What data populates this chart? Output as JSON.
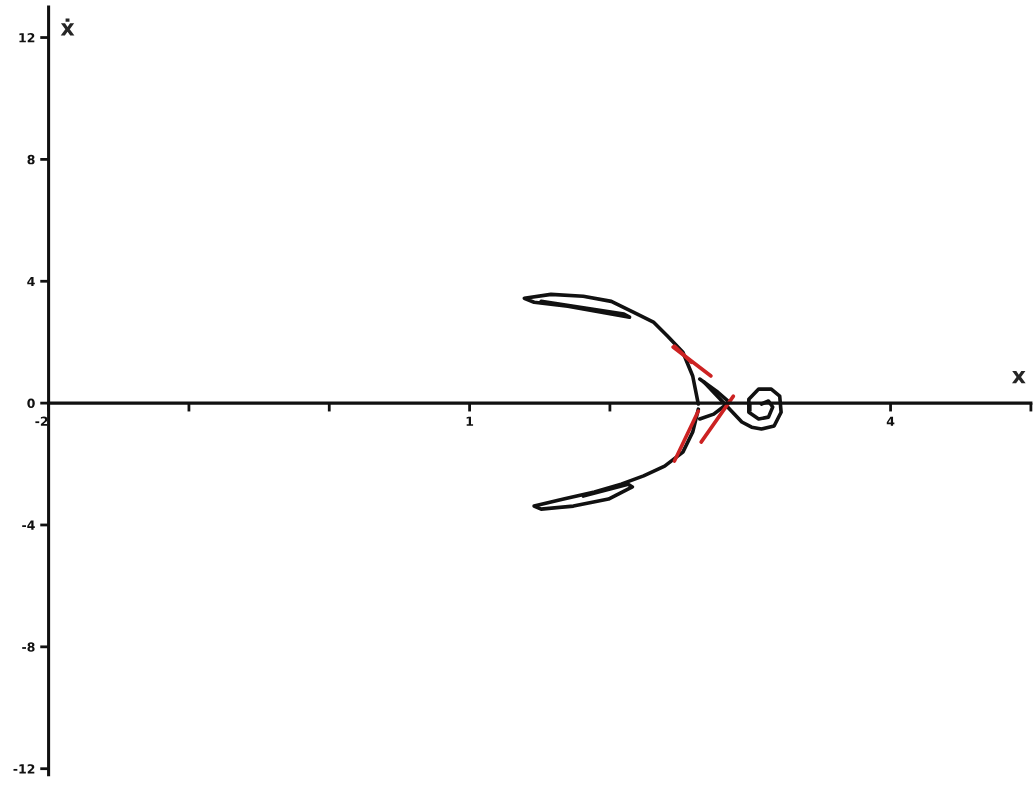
{
  "chart_data": {
    "type": "line",
    "xlabel": "x",
    "ylabel": "ẋ",
    "xlim": [
      -2,
      5
    ],
    "ylim": [
      -12.2,
      13
    ],
    "xticks": [
      -2,
      {
        "value": -1,
        "label": null
      },
      {
        "value": 0,
        "label": null
      },
      1,
      {
        "value": 2,
        "label": null
      },
      {
        "value": 3,
        "label": null
      },
      4,
      {
        "value": 5,
        "label": null
      }
    ],
    "yticks": [
      -12,
      -8,
      -4,
      0,
      4,
      8,
      12
    ],
    "grid": false,
    "legend": false,
    "marker": "none",
    "line_style": "solid",
    "series": [
      {
        "color": "#111111",
        "x": [
          2.63,
          2.59,
          2.52,
          2.41,
          2.31,
          2.17,
          2.01,
          1.81,
          1.58,
          1.39,
          1.46,
          1.7,
          1.94,
          2.14,
          2.1,
          1.51
        ],
        "values": [
          -0.03,
          0.89,
          1.67,
          2.2,
          2.66,
          2.98,
          3.34,
          3.51,
          3.57,
          3.44,
          3.31,
          3.18,
          2.98,
          2.82,
          2.92,
          3.34
        ]
      },
      {
        "color": "#111111",
        "x": [
          2.63,
          2.59,
          2.52,
          2.39,
          2.24,
          2.08,
          1.89,
          1.67,
          1.46,
          1.51,
          1.74,
          1.99,
          2.16,
          2.13,
          1.81
        ],
        "values": [
          -0.2,
          -0.95,
          -1.61,
          -2.07,
          -2.39,
          -2.66,
          -2.92,
          -3.15,
          -3.38,
          -3.48,
          -3.38,
          -3.15,
          -2.75,
          -2.66,
          -3.05
        ]
      },
      {
        "color": "#111111",
        "x": [
          2.67,
          2.94,
          3.01,
          3.08,
          3.17,
          3.22,
          3.21,
          3.15,
          3.06,
          2.99,
          2.99,
          3.06,
          3.13,
          3.16,
          3.13,
          3.08
        ],
        "values": [
          0.69,
          -0.62,
          -0.79,
          -0.85,
          -0.75,
          -0.3,
          0.23,
          0.46,
          0.46,
          0.13,
          -0.3,
          -0.52,
          -0.46,
          -0.13,
          0.07,
          -0.03
        ]
      },
      {
        "color": "#111111",
        "x": [
          2.64,
          2.76,
          2.85,
          2.74,
          2.64
        ],
        "values": [
          0.79,
          0.39,
          0.03,
          -0.36,
          -0.52
        ]
      },
      {
        "color": "#cc2222",
        "x": [
          2.45,
          2.72
        ],
        "values": [
          1.84,
          0.89
        ]
      },
      {
        "color": "#cc2222",
        "x": [
          2.46,
          2.58
        ],
        "values": [
          1.87,
          1.34
        ]
      },
      {
        "color": "#cc2222",
        "x": [
          2.46,
          2.63
        ],
        "values": [
          -1.9,
          -0.26
        ]
      },
      {
        "color": "#cc2222",
        "x": [
          2.65,
          2.88
        ],
        "values": [
          -1.28,
          0.23
        ]
      }
    ]
  }
}
